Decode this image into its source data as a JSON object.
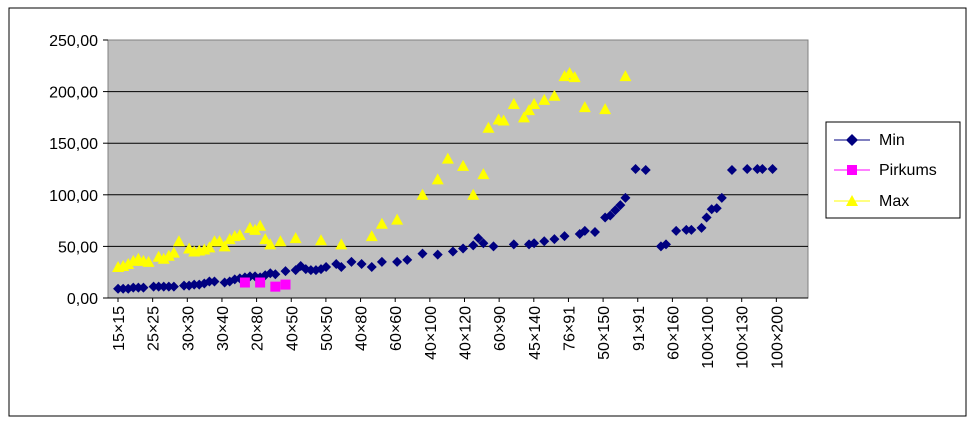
{
  "chart_data": {
    "type": "scatter",
    "title": "",
    "xlabel": "",
    "ylabel": "",
    "ylim": [
      0,
      250
    ],
    "xlim": [
      0,
      130
    ],
    "yticks": [
      "0,00",
      "50,00",
      "100,00",
      "150,00",
      "200,00",
      "250,00"
    ],
    "ytick_values": [
      0,
      50,
      100,
      150,
      200,
      250
    ],
    "categories": [
      "15×15",
      "25×25",
      "30×30",
      "30×40",
      "20×80",
      "40×50",
      "50×50",
      "40×80",
      "60×60",
      "40×100",
      "40×120",
      "60×90",
      "45×140",
      "76×91",
      "50×150",
      "91×91",
      "60×160",
      "100×100",
      "100×130",
      "100×200"
    ],
    "category_positions": [
      0,
      7,
      15,
      22,
      29,
      36,
      43,
      50,
      57,
      64,
      71,
      78,
      85,
      92,
      99,
      106,
      113,
      120,
      127,
      134
    ],
    "grid": true,
    "plot_background": "#c0c0c0",
    "legend_position": "right",
    "series": [
      {
        "name": "Min",
        "color": "#000080",
        "marker": "diamond",
        "x": [
          0,
          1,
          2,
          3,
          4,
          5,
          7,
          8,
          9,
          10,
          11,
          13,
          14,
          15,
          16,
          17,
          18,
          19,
          21,
          22,
          23,
          24,
          25,
          26,
          27,
          28,
          29,
          30,
          31,
          33,
          35,
          36,
          37,
          38,
          39,
          40,
          41,
          43,
          44,
          46,
          48,
          50,
          52,
          55,
          57,
          60,
          63,
          66,
          68,
          70,
          71,
          72,
          74,
          78,
          81,
          82,
          84,
          86,
          88,
          91,
          92,
          94,
          96,
          97,
          98,
          99,
          100,
          102,
          104,
          107,
          108,
          110,
          112,
          113,
          115,
          116,
          117,
          118,
          119,
          121,
          124,
          126,
          127,
          129
        ],
        "y": [
          9,
          9,
          9,
          10,
          10,
          10,
          11,
          11,
          11,
          11,
          11,
          12,
          12,
          13,
          13,
          14,
          16,
          16,
          15,
          16,
          18,
          19,
          20,
          21,
          21,
          20,
          22,
          24,
          23,
          26,
          27,
          31,
          28,
          27,
          27,
          28,
          30,
          33,
          30,
          35,
          33,
          30,
          35,
          35,
          37,
          43,
          42,
          45,
          48,
          51,
          58,
          53,
          50,
          52,
          52,
          53,
          55,
          57,
          60,
          62,
          65,
          64,
          78,
          80,
          85,
          90,
          97,
          125,
          124,
          50,
          52,
          65,
          66,
          66,
          68,
          78,
          86,
          87,
          97,
          124,
          125,
          125,
          125,
          125
        ]
      },
      {
        "name": "Pirkums",
        "color": "#ff00ff",
        "marker": "square",
        "x": [
          25,
          28,
          31,
          33
        ],
        "y": [
          15,
          15,
          11,
          13
        ]
      },
      {
        "name": "Max",
        "color": "#ffff00",
        "marker": "triangle",
        "x": [
          0,
          1,
          2,
          3,
          4,
          5,
          6,
          8,
          9,
          10,
          11,
          12,
          14,
          15,
          16,
          17,
          18,
          19,
          20,
          21,
          22,
          23,
          24,
          26,
          27,
          28,
          29,
          30,
          32,
          35,
          40,
          44,
          50,
          52,
          55,
          60,
          63,
          65,
          68,
          70,
          72,
          73,
          75,
          76,
          78,
          80,
          81,
          82,
          84,
          86,
          88,
          89,
          90,
          92,
          96,
          100
        ],
        "y": [
          30,
          31,
          33,
          36,
          38,
          36,
          35,
          40,
          38,
          41,
          44,
          55,
          48,
          45,
          46,
          47,
          49,
          55,
          55,
          50,
          57,
          60,
          61,
          68,
          66,
          70,
          57,
          52,
          55,
          58,
          56,
          52,
          60,
          72,
          76,
          100,
          115,
          135,
          128,
          100,
          120,
          165,
          173,
          172,
          188,
          175,
          182,
          188,
          192,
          196,
          215,
          218,
          214,
          185,
          183,
          215
        ]
      }
    ]
  }
}
